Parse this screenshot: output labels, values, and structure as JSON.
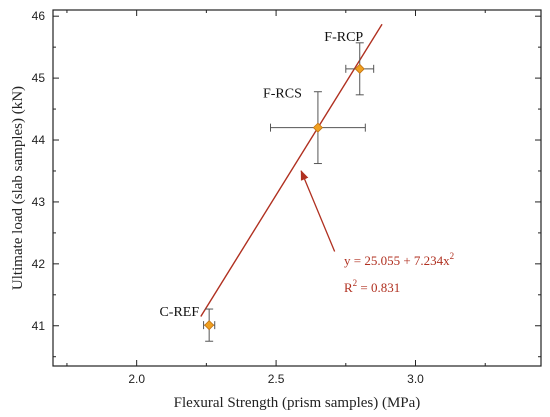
{
  "chart_data": {
    "type": "scatter",
    "xlabel": "Flexural Strength (prism samples) (MPa)",
    "ylabel": "Ultimate load (slab samples) (kN)",
    "xlim": [
      1.7,
      3.45
    ],
    "ylim": [
      40.35,
      46.1
    ],
    "xticks": [
      "2.0",
      "2.5",
      "3.0"
    ],
    "xtick_values": [
      2.0,
      2.5,
      3.0
    ],
    "yticks": [
      "41",
      "42",
      "43",
      "44",
      "45",
      "46"
    ],
    "ytick_values": [
      41,
      42,
      43,
      44,
      45,
      46
    ],
    "grid": false,
    "points": [
      {
        "label": "C-REF",
        "x": 2.26,
        "y": 41.01,
        "xerr": 0.02,
        "yerr": 0.26
      },
      {
        "label": "F-RCS",
        "x": 2.65,
        "y": 44.2,
        "xerr": 0.17,
        "yerr": 0.58
      },
      {
        "label": "F-RCP",
        "x": 2.8,
        "y": 45.15,
        "xerr": 0.05,
        "yerr": 0.42
      }
    ],
    "fit_line": {
      "x_start": 2.23,
      "y_start": 41.15,
      "x_end": 2.88,
      "y_end": 45.87
    },
    "annotation": {
      "equation_main": "y = 25.055 + 7.234x",
      "equation_sup": "2",
      "r2_main": "R",
      "r2_sup": "2",
      "r2_value": " = 0.831",
      "arrow_from": {
        "x": 2.71,
        "y": 42.2
      },
      "arrow_to": {
        "x": 2.59,
        "y": 43.5
      }
    },
    "colors": {
      "marker": "#f0a020",
      "line": "#b03020",
      "errorbar": "#555555",
      "axis": "#222222"
    }
  }
}
